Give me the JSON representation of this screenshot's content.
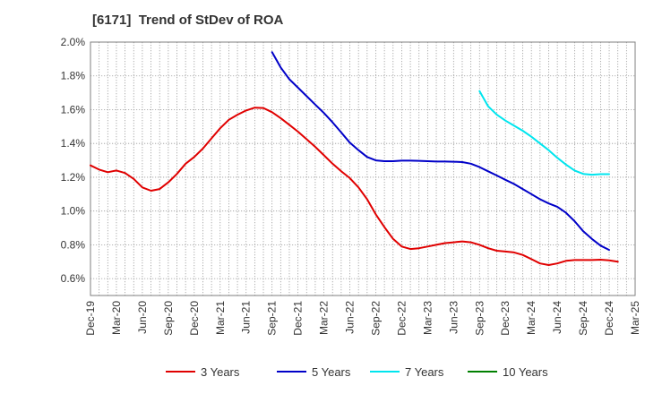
{
  "chart_data": {
    "type": "line",
    "title": "[6171]  Trend of StDev of ROA",
    "xlabel": "",
    "ylabel": "",
    "x_ticks": [
      "Dec-19",
      "Mar-20",
      "Jun-20",
      "Sep-20",
      "Dec-20",
      "Mar-21",
      "Jun-21",
      "Sep-21",
      "Dec-21",
      "Mar-22",
      "Jun-22",
      "Sep-22",
      "Dec-22",
      "Mar-23",
      "Jun-23",
      "Sep-23",
      "Dec-23",
      "Mar-24",
      "Jun-24",
      "Sep-24",
      "Dec-24",
      "Mar-25"
    ],
    "y_ticks": [
      "0.6%",
      "0.8%",
      "1.0%",
      "1.2%",
      "1.4%",
      "1.6%",
      "1.8%",
      "2.0%"
    ],
    "ylim": [
      0.5,
      2.0
    ],
    "grid": true,
    "legend_position": "bottom",
    "series": [
      {
        "name": "3 Years",
        "color": "#e00000",
        "start_month": 0,
        "values": [
          1.27,
          1.245,
          1.23,
          1.24,
          1.225,
          1.19,
          1.14,
          1.12,
          1.13,
          1.17,
          1.22,
          1.28,
          1.32,
          1.37,
          1.43,
          1.49,
          1.54,
          1.57,
          1.595,
          1.612,
          1.61,
          1.585,
          1.55,
          1.51,
          1.47,
          1.425,
          1.38,
          1.33,
          1.28,
          1.235,
          1.195,
          1.14,
          1.07,
          0.98,
          0.905,
          0.835,
          0.79,
          0.775,
          0.78,
          0.79,
          0.8,
          0.81,
          0.815,
          0.82,
          0.815,
          0.8,
          0.78,
          0.765,
          0.76,
          0.755,
          0.74,
          0.715,
          0.69,
          0.68,
          0.69,
          0.705,
          0.71,
          0.71,
          0.71,
          0.712,
          0.708,
          0.7
        ]
      },
      {
        "name": "5 Years",
        "color": "#0000c8",
        "start_month": 21,
        "values": [
          1.94,
          1.85,
          1.78,
          1.73,
          1.68,
          1.63,
          1.58,
          1.525,
          1.465,
          1.405,
          1.36,
          1.32,
          1.3,
          1.295,
          1.295,
          1.298,
          1.298,
          1.297,
          1.295,
          1.293,
          1.293,
          1.292,
          1.29,
          1.28,
          1.26,
          1.235,
          1.21,
          1.185,
          1.16,
          1.13,
          1.1,
          1.07,
          1.045,
          1.025,
          0.99,
          0.94,
          0.88,
          0.835,
          0.795,
          0.77
        ]
      },
      {
        "name": "7 Years",
        "color": "#00e5ee",
        "start_month": 45,
        "values": [
          1.71,
          1.62,
          1.57,
          1.535,
          1.505,
          1.475,
          1.44,
          1.4,
          1.36,
          1.315,
          1.275,
          1.24,
          1.22,
          1.215,
          1.218,
          1.218
        ]
      },
      {
        "name": "10 Years",
        "color": "#008000",
        "start_month": null,
        "values": []
      }
    ]
  }
}
